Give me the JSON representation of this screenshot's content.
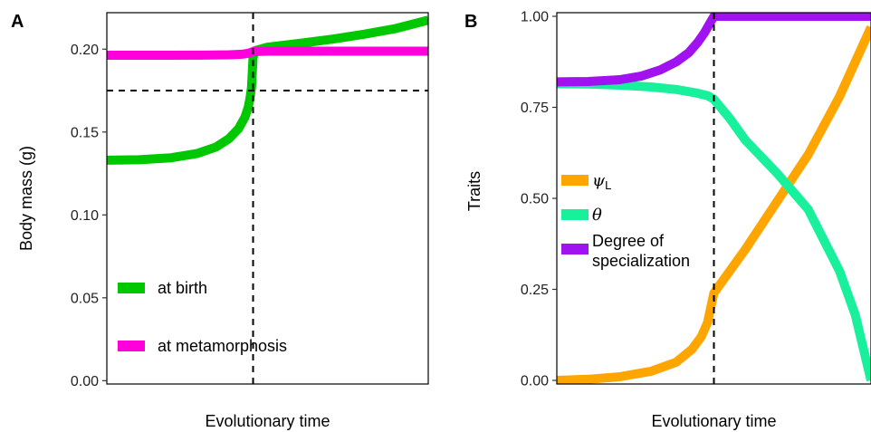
{
  "chart_data": [
    {
      "type": "line",
      "panel_label": "A",
      "xlabel": "Evolutionary time",
      "ylabel": "Body mass (g)",
      "xlim": [
        0,
        1
      ],
      "ylim": [
        -0.002,
        0.222
      ],
      "y_ticks": [
        0.0,
        0.05,
        0.1,
        0.15,
        0.2
      ],
      "y_tick_labels": [
        "0.00",
        "0.05",
        "0.10",
        "0.15",
        "0.20"
      ],
      "grid": false,
      "legend_position": "bottom-left",
      "reference_lines": {
        "vertical_x": 0.455,
        "horizontal_y": 0.175,
        "style": "dashed"
      },
      "series": [
        {
          "name": "at birth",
          "color": "#00C800",
          "x": [
            0,
            0.1,
            0.2,
            0.28,
            0.34,
            0.38,
            0.41,
            0.43,
            0.44,
            0.445,
            0.45,
            0.455,
            0.46,
            0.5,
            0.6,
            0.7,
            0.8,
            0.9,
            1.0
          ],
          "y": [
            0.133,
            0.1333,
            0.1345,
            0.137,
            0.141,
            0.146,
            0.152,
            0.159,
            0.165,
            0.17,
            0.177,
            0.195,
            0.199,
            0.2012,
            0.2035,
            0.206,
            0.209,
            0.2125,
            0.2175
          ]
        },
        {
          "name": "at metamorphosis",
          "color": "#FF00DC",
          "x": [
            0,
            0.1,
            0.2,
            0.3,
            0.38,
            0.42,
            0.44,
            0.455,
            0.5,
            0.6,
            0.7,
            0.8,
            0.9,
            1.0
          ],
          "y": [
            0.1963,
            0.1963,
            0.1963,
            0.1964,
            0.1966,
            0.1969,
            0.1975,
            0.1985,
            0.1988,
            0.1988,
            0.1988,
            0.1988,
            0.1988,
            0.1988
          ]
        }
      ]
    },
    {
      "type": "line",
      "panel_label": "B",
      "xlabel": "Evolutionary time",
      "ylabel": "Traits",
      "xlim": [
        0,
        1
      ],
      "ylim": [
        -0.01,
        1.01
      ],
      "y_ticks": [
        0.0,
        0.25,
        0.5,
        0.75,
        1.0
      ],
      "y_tick_labels": [
        "0.00",
        "0.25",
        "0.50",
        "0.75",
        "1.00"
      ],
      "grid": false,
      "legend_position": "left",
      "reference_lines": {
        "vertical_x": 0.5,
        "style": "dashed"
      },
      "series": [
        {
          "name": "ψL",
          "color": "#FFA500",
          "x": [
            0,
            0.1,
            0.2,
            0.3,
            0.38,
            0.43,
            0.46,
            0.48,
            0.49,
            0.5,
            0.55,
            0.6,
            0.7,
            0.8,
            0.9,
            1.0
          ],
          "y": [
            0.0,
            0.003,
            0.01,
            0.025,
            0.05,
            0.085,
            0.12,
            0.16,
            0.2,
            0.24,
            0.3,
            0.36,
            0.49,
            0.62,
            0.78,
            0.97
          ]
        },
        {
          "name": "θ",
          "color": "#19F09B",
          "x": [
            0,
            0.1,
            0.2,
            0.3,
            0.38,
            0.44,
            0.48,
            0.5,
            0.55,
            0.6,
            0.7,
            0.8,
            0.9,
            0.95,
            1.0
          ],
          "y": [
            0.815,
            0.814,
            0.811,
            0.806,
            0.799,
            0.79,
            0.782,
            0.772,
            0.72,
            0.66,
            0.57,
            0.47,
            0.3,
            0.18,
            0.0
          ]
        },
        {
          "name": "Degree of specialization",
          "color": "#A013F0",
          "x": [
            0,
            0.1,
            0.2,
            0.27,
            0.33,
            0.38,
            0.42,
            0.45,
            0.47,
            0.49,
            0.5,
            0.6,
            0.7,
            0.8,
            0.9,
            1.0
          ],
          "y": [
            0.82,
            0.821,
            0.826,
            0.836,
            0.853,
            0.875,
            0.9,
            0.93,
            0.955,
            0.985,
            1.0,
            1.0,
            1.0,
            1.0,
            1.0,
            1.0
          ]
        }
      ]
    }
  ]
}
